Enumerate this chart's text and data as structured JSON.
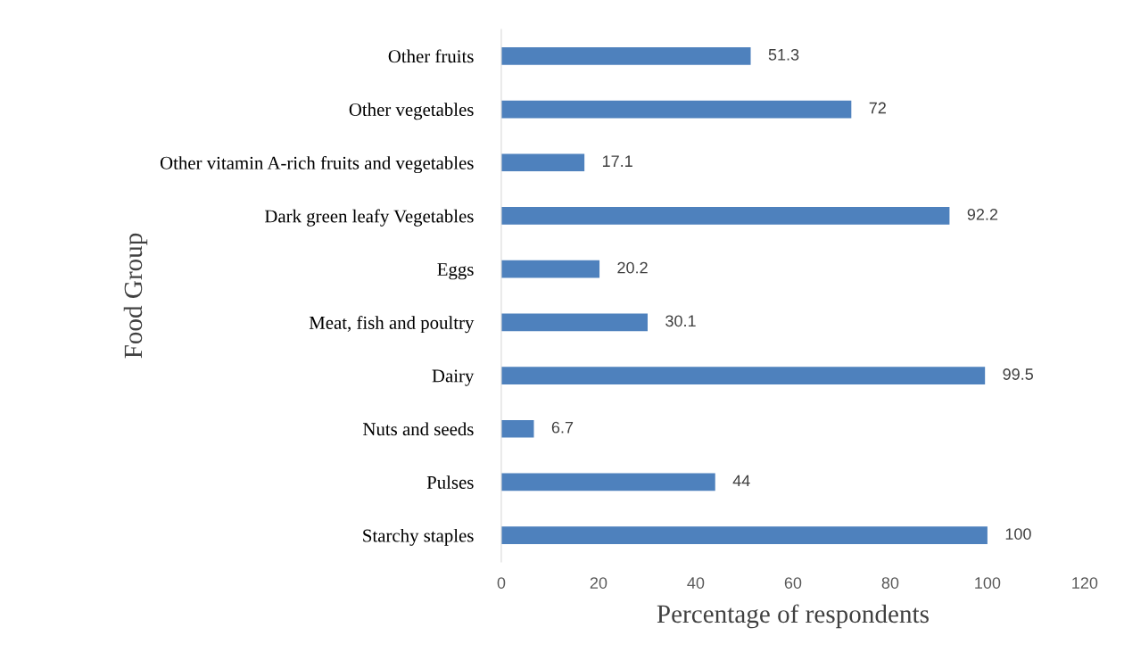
{
  "chart_data": {
    "type": "bar",
    "orientation": "horizontal",
    "xlabel": "Percentage of respondents",
    "ylabel": "Food Group",
    "categories": [
      "Other fruits",
      "Other vegetables",
      "Other vitamin A-rich fruits and vegetables",
      "Dark green leafy Vegetables",
      "Eggs",
      "Meat, fish and poultry",
      "Dairy",
      "Nuts and seeds",
      "Pulses",
      "Starchy staples"
    ],
    "values": [
      51.3,
      72,
      17.1,
      92.2,
      20.2,
      30.1,
      99.5,
      6.7,
      44,
      100
    ],
    "color": "#4e81bd",
    "xlim": [
      0,
      120
    ],
    "xticks": [
      0,
      20,
      40,
      60,
      80,
      100,
      120
    ],
    "data_labels": true,
    "grid": false
  }
}
